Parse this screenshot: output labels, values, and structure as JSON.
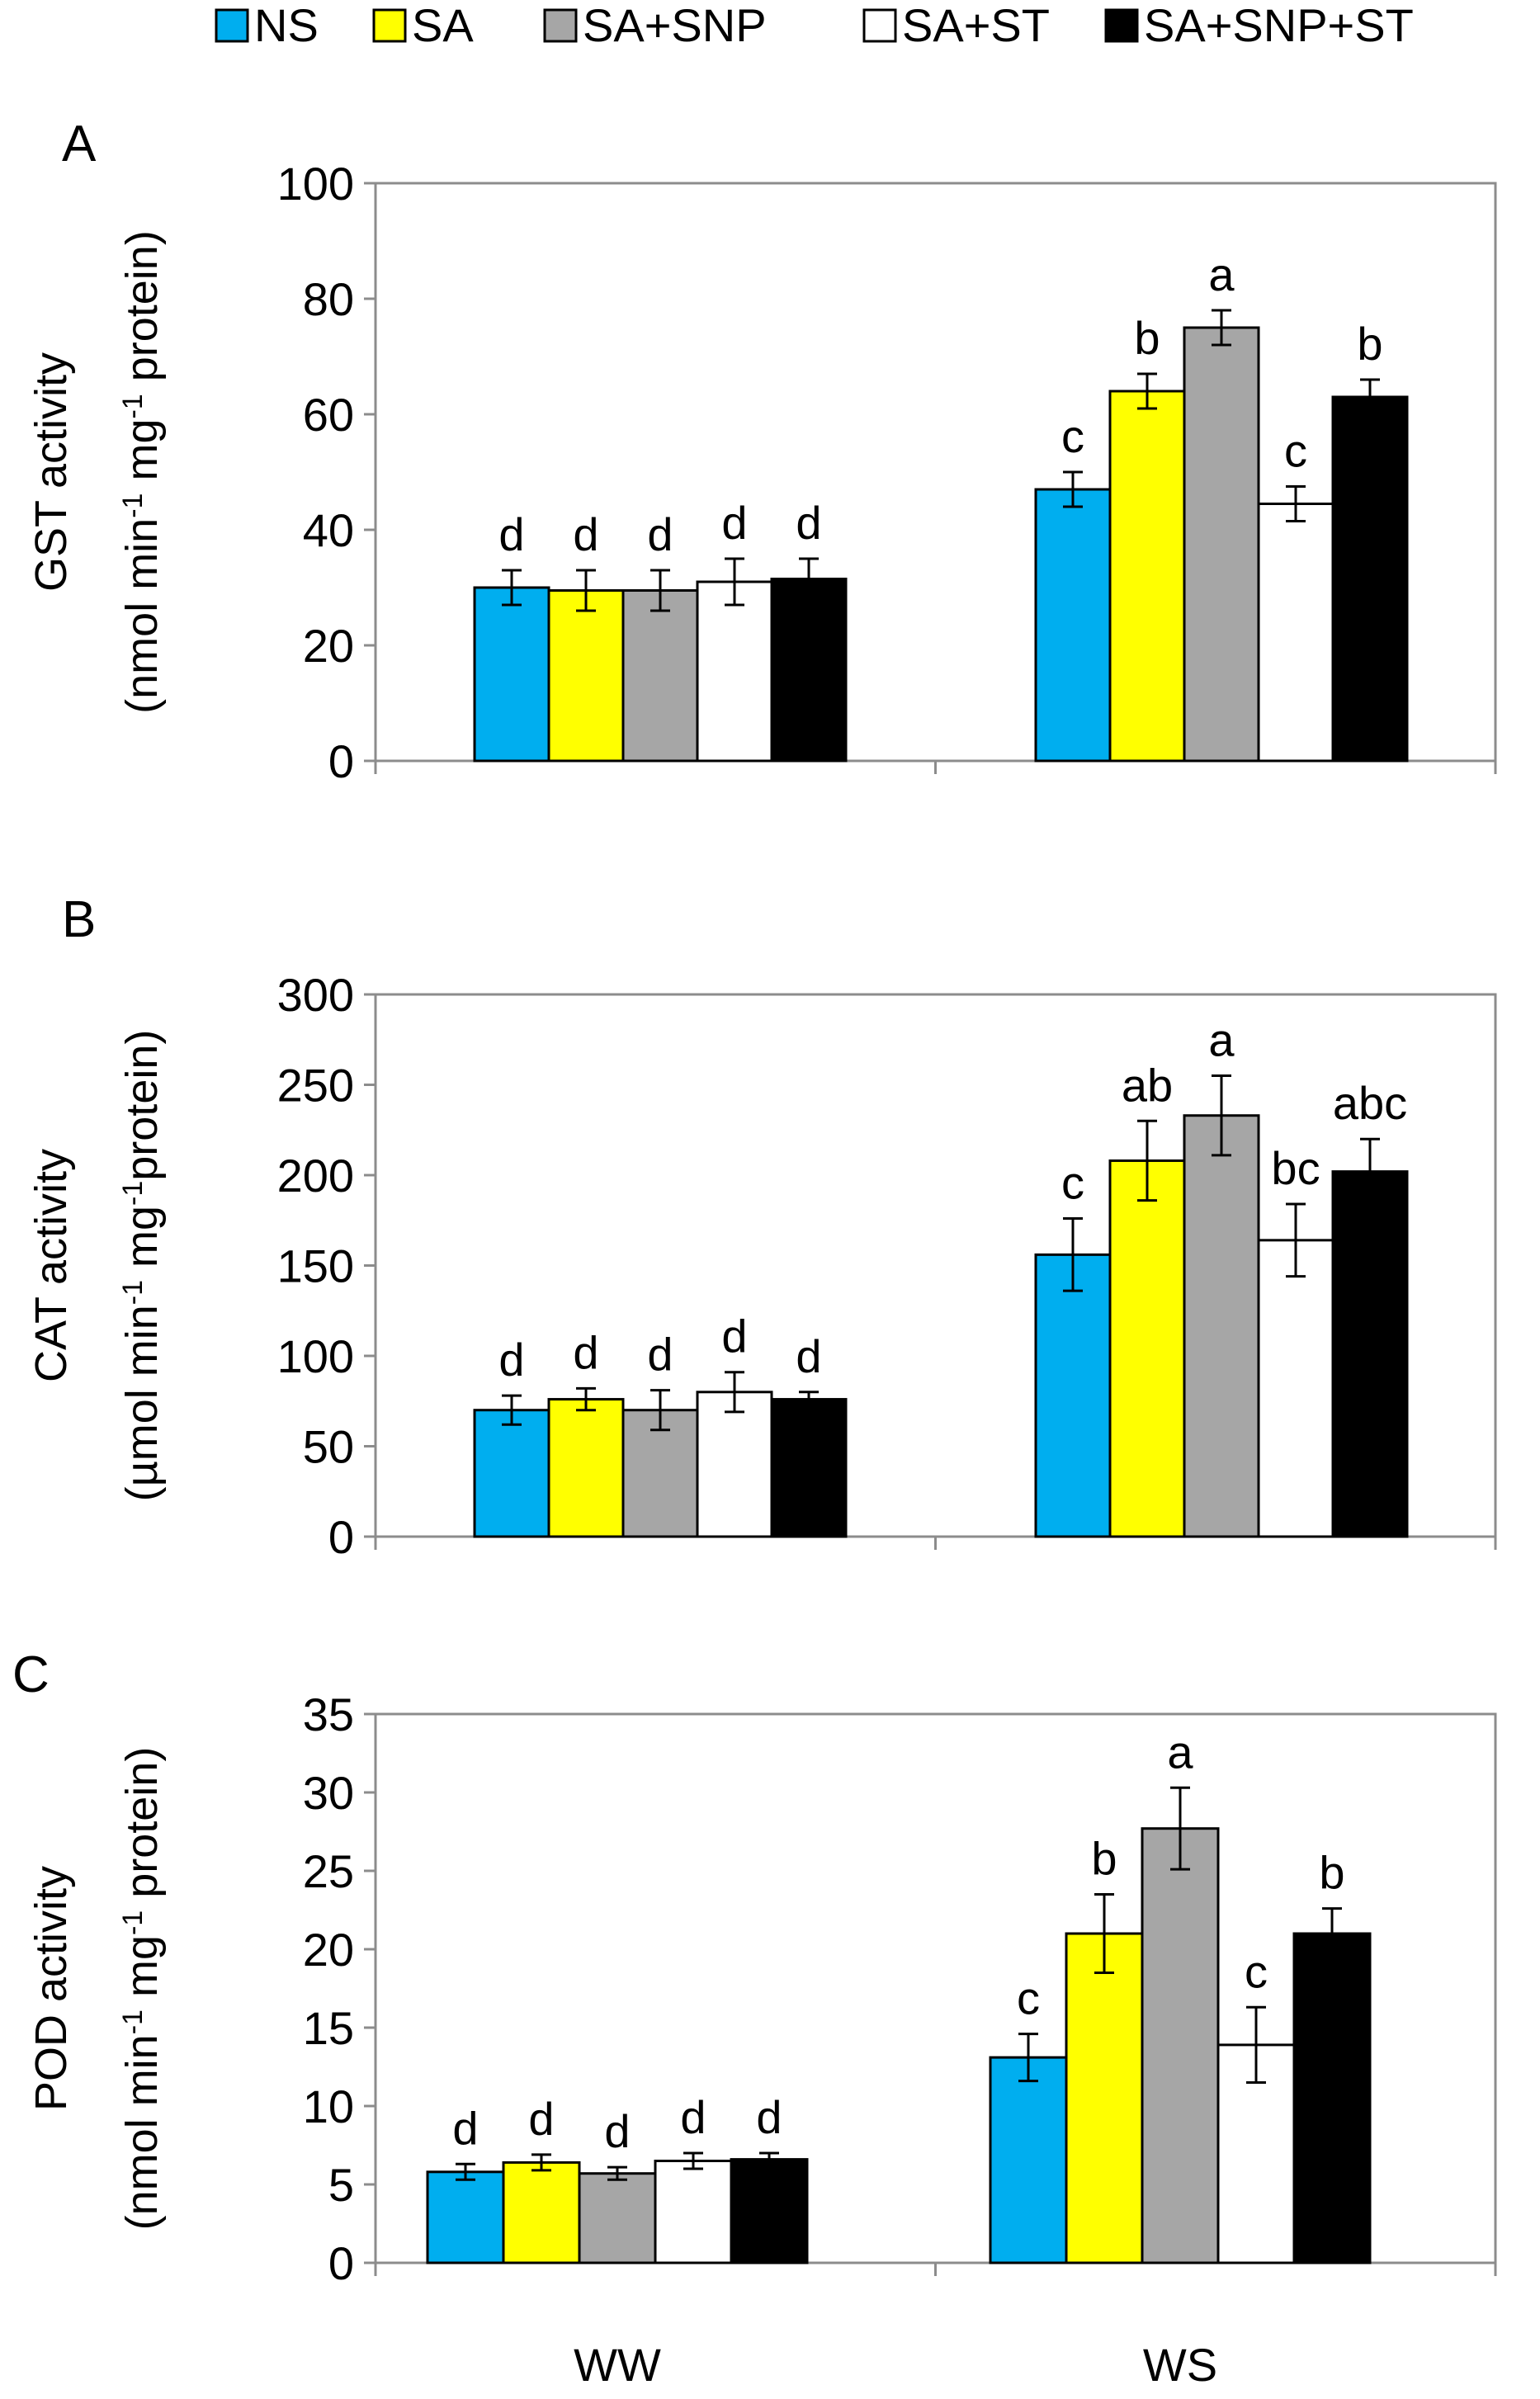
{
  "legend": {
    "items": [
      {
        "label": "NS",
        "color": "#00aeef"
      },
      {
        "label": "SA",
        "color": "#ffff00"
      },
      {
        "label": "SA+SNP",
        "color": "#a6a6a6"
      },
      {
        "label": "SA+ST",
        "color": "#ffffff"
      },
      {
        "label": "SA+SNP+ST",
        "color": "#000000"
      }
    ]
  },
  "chart_data": [
    {
      "type": "bar",
      "panel": "A",
      "ylabel_line1": "GST  activity",
      "ylabel_line2": "(nmol min",
      "ylabel_sup1": "-1",
      "ylabel_mid": " mg",
      "ylabel_sup2": "-1",
      "ylabel_end": " protein)",
      "categories": [
        "WW",
        "WS"
      ],
      "ylim": [
        0,
        100
      ],
      "yticks": [
        "0",
        "20",
        "40",
        "60",
        "80",
        "100"
      ],
      "series": [
        {
          "name": "NS",
          "values": [
            30,
            47
          ],
          "errors": [
            3,
            3
          ],
          "letters": [
            "d",
            "c"
          ]
        },
        {
          "name": "SA",
          "values": [
            29.5,
            64
          ],
          "errors": [
            3.5,
            3
          ],
          "letters": [
            "d",
            "b"
          ]
        },
        {
          "name": "SA+SNP",
          "values": [
            29.5,
            75
          ],
          "errors": [
            3.5,
            3
          ],
          "letters": [
            "d",
            "a"
          ]
        },
        {
          "name": "SA+ST",
          "values": [
            31,
            44.5
          ],
          "errors": [
            4,
            3
          ],
          "letters": [
            "d",
            "c"
          ]
        },
        {
          "name": "SA+SNP+ST",
          "values": [
            31.5,
            63
          ],
          "errors": [
            3.5,
            3
          ],
          "letters": [
            "d",
            "b"
          ]
        }
      ]
    },
    {
      "type": "bar",
      "panel": "B",
      "ylabel_line1": "CAT activity",
      "ylabel_line2": "(µmol min",
      "ylabel_sup1": "-1",
      "ylabel_mid": " mg",
      "ylabel_sup2": "-1",
      "ylabel_end": "protein)",
      "categories": [
        "WW",
        "WS"
      ],
      "ylim": [
        0,
        300
      ],
      "yticks": [
        "0",
        "50",
        "100",
        "150",
        "200",
        "250",
        "300"
      ],
      "series": [
        {
          "name": "NS",
          "values": [
            70,
            156
          ],
          "errors": [
            8,
            20
          ],
          "letters": [
            "d",
            "c"
          ]
        },
        {
          "name": "SA",
          "values": [
            76,
            208
          ],
          "errors": [
            6,
            22
          ],
          "letters": [
            "d",
            "ab"
          ]
        },
        {
          "name": "SA+SNP",
          "values": [
            70,
            233
          ],
          "errors": [
            11,
            22
          ],
          "letters": [
            "d",
            "a"
          ]
        },
        {
          "name": "SA+ST",
          "values": [
            80,
            164
          ],
          "errors": [
            11,
            20
          ],
          "letters": [
            "d",
            "bc"
          ]
        },
        {
          "name": "SA+SNP+ST",
          "values": [
            76,
            202
          ],
          "errors": [
            4,
            18
          ],
          "letters": [
            "d",
            "abc"
          ]
        }
      ]
    },
    {
      "type": "bar",
      "panel": "C",
      "ylabel_line1": "POD  activity",
      "ylabel_line2": "(nmol min",
      "ylabel_sup1": "-1",
      "ylabel_mid": " mg",
      "ylabel_sup2": "-1",
      "ylabel_end": " protein)",
      "categories": [
        "WW",
        "WS"
      ],
      "ylim": [
        0,
        35
      ],
      "yticks": [
        "0",
        "5",
        "10",
        "15",
        "20",
        "25",
        "30",
        "35"
      ],
      "series": [
        {
          "name": "NS",
          "values": [
            5.8,
            13.1
          ],
          "errors": [
            0.5,
            1.5
          ],
          "letters": [
            "d",
            "c"
          ]
        },
        {
          "name": "SA",
          "values": [
            6.4,
            21
          ],
          "errors": [
            0.5,
            2.5
          ],
          "letters": [
            "d",
            "b"
          ]
        },
        {
          "name": "SA+SNP",
          "values": [
            5.7,
            27.7
          ],
          "errors": [
            0.4,
            2.6
          ],
          "letters": [
            "d",
            "a"
          ]
        },
        {
          "name": "SA+ST",
          "values": [
            6.5,
            13.9
          ],
          "errors": [
            0.5,
            2.4
          ],
          "letters": [
            "d",
            "c"
          ]
        },
        {
          "name": "SA+SNP+ST",
          "values": [
            6.6,
            21
          ],
          "errors": [
            0.4,
            1.6
          ],
          "letters": [
            "d",
            "b"
          ]
        }
      ]
    }
  ]
}
